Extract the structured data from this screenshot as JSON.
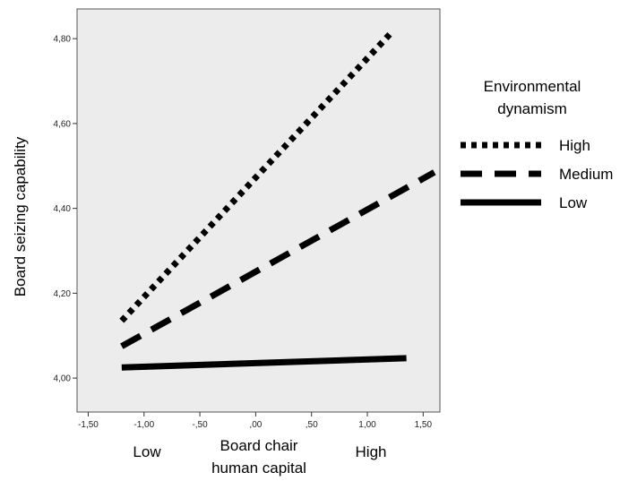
{
  "chart_data": {
    "type": "line",
    "title": "",
    "xlabel": "Board chair\nhuman capital",
    "ylabel": "Board seizing capability",
    "x_category_labels": [
      "Low",
      "High"
    ],
    "xlim": [
      -1.6,
      1.65
    ],
    "ylim": [
      3.92,
      4.87
    ],
    "x_ticks": [
      -1.5,
      -1.0,
      -0.5,
      0.0,
      0.5,
      1.0,
      1.5
    ],
    "x_tick_labels": [
      "-1,50",
      "-1,00",
      "-,50",
      ",00",
      ",50",
      "1,00",
      "1,50"
    ],
    "y_ticks": [
      4.0,
      4.2,
      4.4,
      4.6,
      4.8
    ],
    "y_tick_labels": [
      "4,00",
      "4,20",
      "4,40",
      "4,60",
      "4,80"
    ],
    "grid": false,
    "plot_background": "#ececec",
    "legend": {
      "title": "Environmental\ndynamism",
      "position": "right"
    },
    "series": [
      {
        "name": "High",
        "style": "dotted",
        "color": "#000000",
        "x": [
          -1.2,
          1.2
        ],
        "y": [
          4.135,
          4.81
        ]
      },
      {
        "name": "Medium",
        "style": "dashed",
        "color": "#000000",
        "x": [
          -1.2,
          1.6
        ],
        "y": [
          4.075,
          4.485
        ]
      },
      {
        "name": "Low",
        "style": "solid",
        "color": "#000000",
        "x": [
          -1.2,
          1.35
        ],
        "y": [
          4.025,
          4.047
        ]
      }
    ]
  }
}
